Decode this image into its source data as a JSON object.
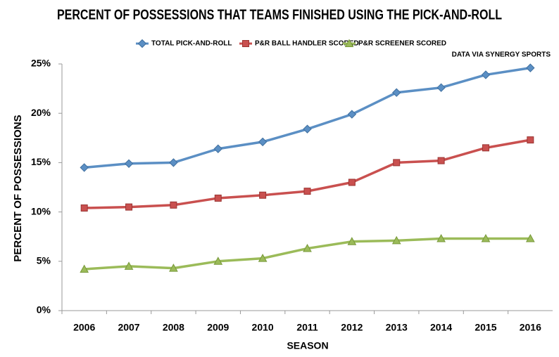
{
  "chart_data": {
    "type": "line",
    "title": "PERCENT OF POSSESSIONS THAT TEAMS FINISHED USING THE PICK-AND-ROLL",
    "source": "DATA VIA SYNERGY SPORTS",
    "x_label": "SEASON",
    "y_label": "PERCENT OF POSSESSIONS",
    "categories": [
      "2006",
      "2007",
      "2008",
      "2009",
      "2010",
      "2011",
      "2012",
      "2013",
      "2014",
      "2015",
      "2016"
    ],
    "series": [
      {
        "name": "TOTAL PICK-AND-ROLL",
        "color": "#5b8fc4",
        "marker": "diamond",
        "values": [
          14.5,
          14.9,
          15.0,
          16.4,
          17.1,
          18.4,
          19.9,
          22.1,
          22.6,
          23.9,
          24.6
        ]
      },
      {
        "name": "P&R BALL HANDLER SCORED",
        "color": "#c9504f",
        "marker": "square",
        "values": [
          10.4,
          10.5,
          10.7,
          11.4,
          11.7,
          12.1,
          13.0,
          15.0,
          15.2,
          16.5,
          17.3
        ]
      },
      {
        "name": "P&R SCREENER SCORED",
        "color": "#9bbb59",
        "marker": "triangle",
        "values": [
          4.2,
          4.5,
          4.3,
          5.0,
          5.3,
          6.3,
          7.0,
          7.1,
          7.3,
          7.3,
          7.3
        ]
      }
    ],
    "ylim": [
      0,
      25
    ],
    "yticks": [
      {
        "value": 0,
        "label": "0%"
      },
      {
        "value": 5,
        "label": "5%"
      },
      {
        "value": 10,
        "label": "10%"
      },
      {
        "value": 15,
        "label": "15%"
      },
      {
        "value": 20,
        "label": "20%"
      },
      {
        "value": 25,
        "label": "25%"
      }
    ],
    "grid": false
  }
}
